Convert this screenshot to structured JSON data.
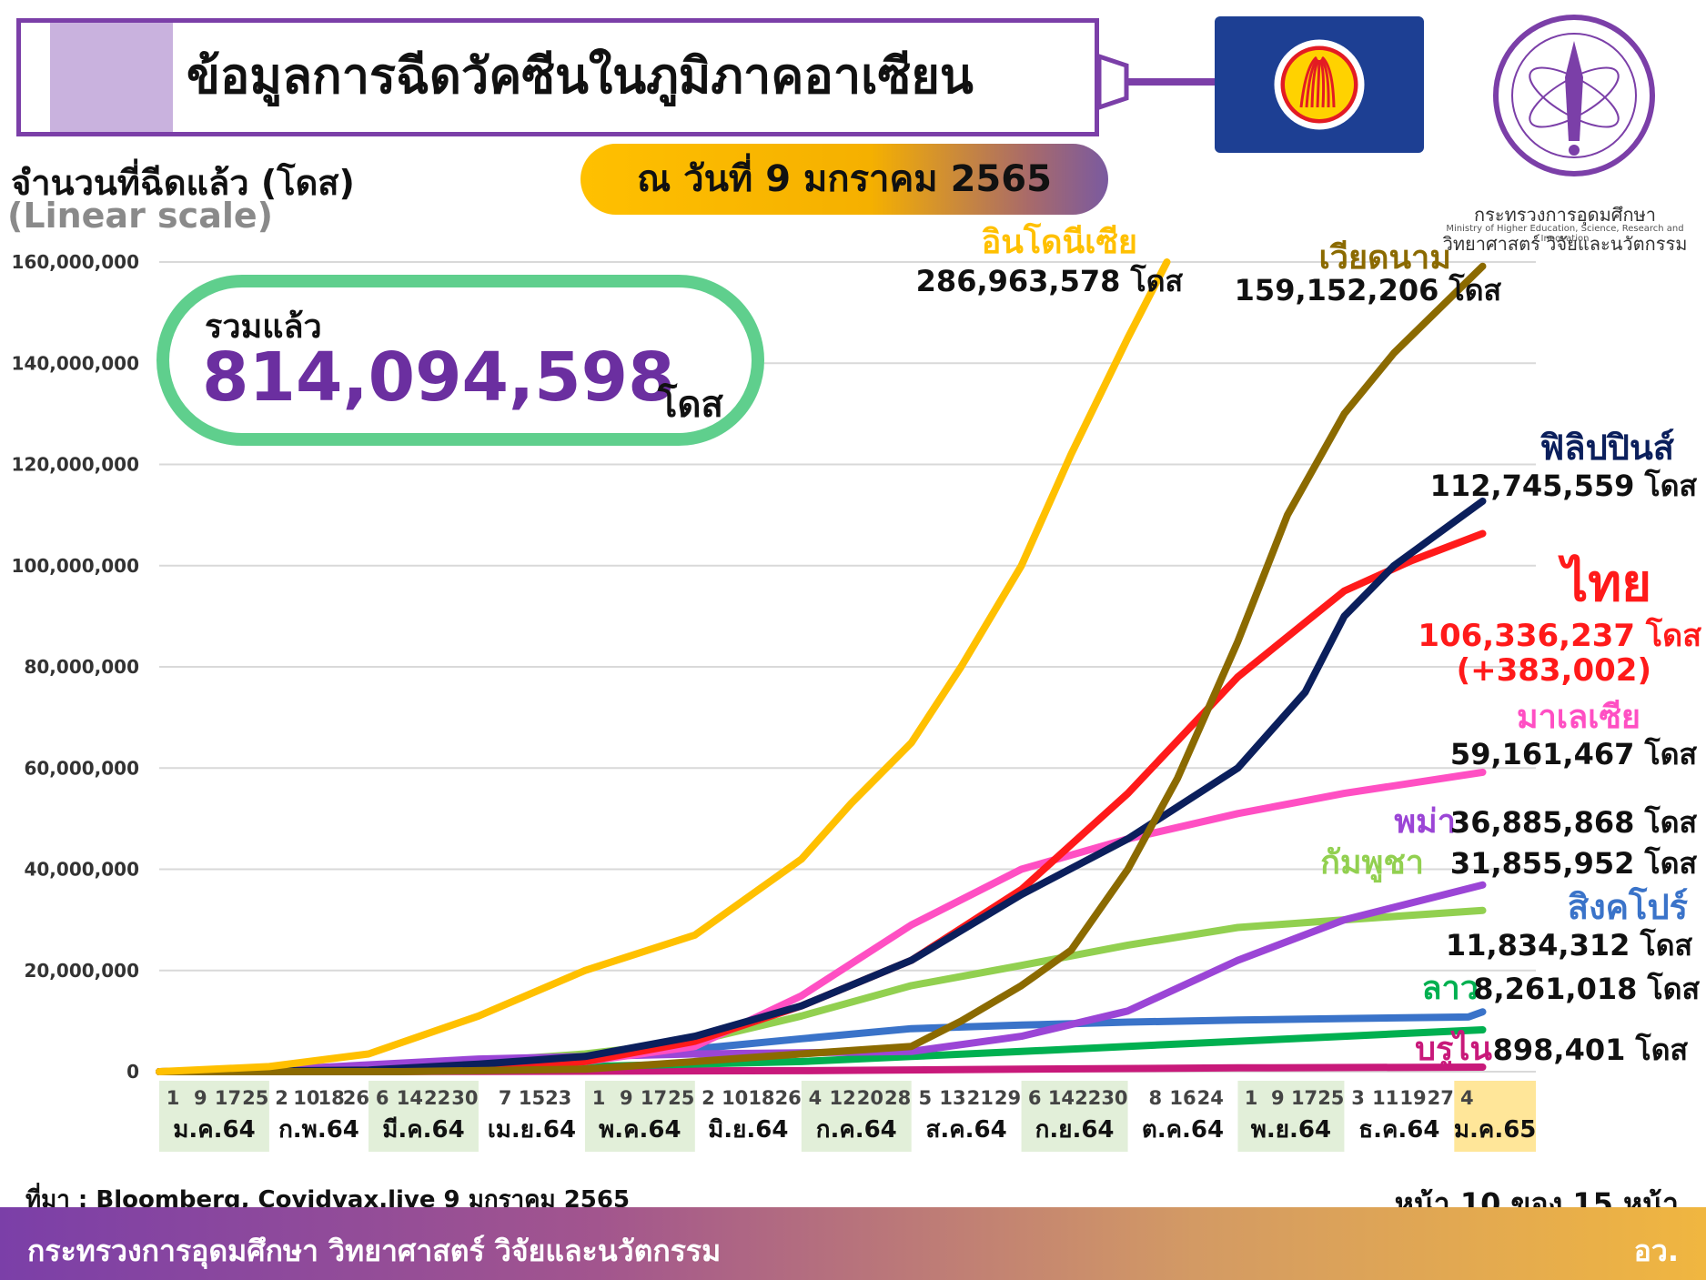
{
  "header": {
    "title": "ข้อมูลการฉีดวัคซีนในภูมิภาคอาเซียน",
    "date": "ณ วันที่ 9 มกราคม 2565",
    "ministry_name": "กระทรวงการอุดมศึกษา วิทยาศาสตร์ วิจัยและนวัตกรรม",
    "ministry_name_en": "Ministry of Higher Education, Science, Research and Innovation"
  },
  "summary": {
    "label": "รวมแล้ว",
    "value": "814,094,598",
    "unit": "โดส"
  },
  "footer": {
    "source": "ที่มา : Bloomberg, Covidvax.live 9 มกราคม 2565",
    "page": "หน้า 10 ของ 15 หน้า",
    "org": "กระทรวงการอุดมศึกษา วิทยาศาสตร์ วิจัยและนวัตกรรม",
    "org_short": "อว."
  },
  "chart_data": {
    "type": "line",
    "ylabel": "จำนวนที่ฉีดแล้ว (โดส)",
    "yscale_note": "(Linear scale)",
    "ylim": [
      0,
      160000000
    ],
    "yticks": [
      0,
      20000000,
      40000000,
      60000000,
      80000000,
      100000000,
      120000000,
      140000000,
      160000000
    ],
    "ytick_labels": [
      "0",
      "20,000,000",
      "40,000,000",
      "60,000,000",
      "80,000,000",
      "100,000,000",
      "120,000,000",
      "140,000,000",
      "160,000,000"
    ],
    "grid": true,
    "x_months": [
      {
        "label": "ม.ค.64",
        "days": [
          "1",
          "9",
          "17",
          "25"
        ],
        "highlight": true
      },
      {
        "label": "ก.พ.64",
        "days": [
          "2",
          "10",
          "18",
          "26"
        ],
        "highlight": false
      },
      {
        "label": "มี.ค.64",
        "days": [
          "6",
          "14",
          "22",
          "30"
        ],
        "highlight": true
      },
      {
        "label": "เม.ย.64",
        "days": [
          "7",
          "15",
          "23"
        ],
        "highlight": false
      },
      {
        "label": "พ.ค.64",
        "days": [
          "1",
          "9",
          "17",
          "25"
        ],
        "highlight": true
      },
      {
        "label": "มิ.ย.64",
        "days": [
          "2",
          "10",
          "18",
          "26"
        ],
        "highlight": false
      },
      {
        "label": "ก.ค.64",
        "days": [
          "4",
          "12",
          "20",
          "28"
        ],
        "highlight": true
      },
      {
        "label": "ส.ค.64",
        "days": [
          "5",
          "13",
          "21",
          "29"
        ],
        "highlight": false
      },
      {
        "label": "ก.ย.64",
        "days": [
          "6",
          "14",
          "22",
          "30"
        ],
        "highlight": true
      },
      {
        "label": "ต.ค.64",
        "days": [
          "8",
          "16",
          "24"
        ],
        "highlight": false
      },
      {
        "label": "พ.ย.64",
        "days": [
          "1",
          "9",
          "17",
          "25"
        ],
        "highlight": true
      },
      {
        "label": "ธ.ค.64",
        "days": [
          "3",
          "11",
          "19",
          "27"
        ],
        "highlight": false
      },
      {
        "label": "ม.ค.65",
        "days": [
          "4"
        ],
        "highlight": "gold"
      }
    ],
    "x_start": "2021-01-01",
    "x_end": "2022-01-09",
    "series": [
      {
        "name": "อินโดนีเซีย",
        "value_label": "286,963,578 โดส",
        "color": "#ffc000",
        "points": [
          [
            "2021-01-01",
            0
          ],
          [
            "2021-02-01",
            1000000
          ],
          [
            "2021-03-01",
            3500000
          ],
          [
            "2021-04-01",
            11000000
          ],
          [
            "2021-05-01",
            20000000
          ],
          [
            "2021-06-01",
            27000000
          ],
          [
            "2021-07-01",
            42000000
          ],
          [
            "2021-07-15",
            53000000
          ],
          [
            "2021-08-01",
            65000000
          ],
          [
            "2021-08-15",
            80000000
          ],
          [
            "2021-09-01",
            100000000
          ],
          [
            "2021-09-15",
            122000000
          ],
          [
            "2021-10-01",
            145000000
          ],
          [
            "2021-10-12",
            160000000
          ]
        ]
      },
      {
        "name": "เวียดนาม",
        "value_label": "159,152,206 โดส",
        "color": "#8b6a00",
        "points": [
          [
            "2021-01-01",
            0
          ],
          [
            "2021-03-10",
            0
          ],
          [
            "2021-05-01",
            500000
          ],
          [
            "2021-06-01",
            2000000
          ],
          [
            "2021-07-01",
            3500000
          ],
          [
            "2021-08-01",
            5000000
          ],
          [
            "2021-08-15",
            10000000
          ],
          [
            "2021-09-01",
            17000000
          ],
          [
            "2021-09-15",
            24000000
          ],
          [
            "2021-10-01",
            40000000
          ],
          [
            "2021-10-15",
            58000000
          ],
          [
            "2021-11-01",
            85000000
          ],
          [
            "2021-11-15",
            110000000
          ],
          [
            "2021-12-01",
            130000000
          ],
          [
            "2021-12-15",
            142000000
          ],
          [
            "2022-01-09",
            159152206
          ]
        ]
      },
      {
        "name": "ฟิลิปปินส์",
        "value_label": "112,745,559 โดส",
        "color": "#0b1f5c",
        "points": [
          [
            "2021-01-01",
            0
          ],
          [
            "2021-03-01",
            300000
          ],
          [
            "2021-04-01",
            1500000
          ],
          [
            "2021-05-01",
            3000000
          ],
          [
            "2021-06-01",
            7000000
          ],
          [
            "2021-07-01",
            13000000
          ],
          [
            "2021-08-01",
            22000000
          ],
          [
            "2021-09-01",
            35000000
          ],
          [
            "2021-10-01",
            46000000
          ],
          [
            "2021-11-01",
            60000000
          ],
          [
            "2021-11-20",
            75000000
          ],
          [
            "2021-12-01",
            90000000
          ],
          [
            "2021-12-15",
            100000000
          ],
          [
            "2022-01-09",
            112745559
          ]
        ]
      },
      {
        "name": "ไทย",
        "value_label": "106,336,237 โดส",
        "extra_label": "(+383,002)",
        "color": "#ff1a1a",
        "points": [
          [
            "2021-01-01",
            0
          ],
          [
            "2021-03-01",
            200000
          ],
          [
            "2021-04-01",
            700000
          ],
          [
            "2021-05-01",
            2000000
          ],
          [
            "2021-06-01",
            6000000
          ],
          [
            "2021-07-01",
            13000000
          ],
          [
            "2021-08-01",
            22000000
          ],
          [
            "2021-09-01",
            36000000
          ],
          [
            "2021-10-01",
            55000000
          ],
          [
            "2021-11-01",
            78000000
          ],
          [
            "2021-12-01",
            95000000
          ],
          [
            "2021-12-20",
            101000000
          ],
          [
            "2022-01-09",
            106336237
          ]
        ]
      },
      {
        "name": "มาเลเซีย",
        "value_label": "59,161,467 โดส",
        "color": "#ff4fc3",
        "points": [
          [
            "2021-01-01",
            0
          ],
          [
            "2021-03-01",
            300000
          ],
          [
            "2021-04-01",
            800000
          ],
          [
            "2021-05-01",
            2000000
          ],
          [
            "2021-06-01",
            5000000
          ],
          [
            "2021-07-01",
            15000000
          ],
          [
            "2021-08-01",
            29000000
          ],
          [
            "2021-09-01",
            40000000
          ],
          [
            "2021-10-01",
            46000000
          ],
          [
            "2021-11-01",
            51000000
          ],
          [
            "2021-12-01",
            55000000
          ],
          [
            "2022-01-09",
            59161467
          ]
        ]
      },
      {
        "name": "พม่า",
        "value_label": "36,885,868 โดส",
        "color": "#9b45d6",
        "points": [
          [
            "2021-01-01",
            0
          ],
          [
            "2021-02-01",
            300000
          ],
          [
            "2021-04-01",
            2500000
          ],
          [
            "2021-06-01",
            3500000
          ],
          [
            "2021-08-01",
            4000000
          ],
          [
            "2021-09-01",
            7000000
          ],
          [
            "2021-10-01",
            12000000
          ],
          [
            "2021-11-01",
            22000000
          ],
          [
            "2021-12-01",
            30000000
          ],
          [
            "2022-01-09",
            36885868
          ]
        ]
      },
      {
        "name": "กัมพูชา",
        "value_label": "31,855,952 โดส",
        "color": "#92d050",
        "points": [
          [
            "2021-01-01",
            0
          ],
          [
            "2021-02-10",
            0
          ],
          [
            "2021-03-01",
            500000
          ],
          [
            "2021-04-01",
            2000000
          ],
          [
            "2021-05-01",
            3500000
          ],
          [
            "2021-06-01",
            6000000
          ],
          [
            "2021-07-01",
            11000000
          ],
          [
            "2021-08-01",
            17000000
          ],
          [
            "2021-09-01",
            21000000
          ],
          [
            "2021-10-01",
            25000000
          ],
          [
            "2021-11-01",
            28500000
          ],
          [
            "2021-12-01",
            30000000
          ],
          [
            "2022-01-09",
            31855952
          ]
        ]
      },
      {
        "name": "สิงคโปร์",
        "value_label": "11,834,312 โดส",
        "color": "#3a73c9",
        "points": [
          [
            "2021-01-01",
            0
          ],
          [
            "2021-03-01",
            500000
          ],
          [
            "2021-04-01",
            1500000
          ],
          [
            "2021-05-01",
            3000000
          ],
          [
            "2021-06-01",
            4500000
          ],
          [
            "2021-07-01",
            6500000
          ],
          [
            "2021-08-01",
            8500000
          ],
          [
            "2021-09-01",
            9200000
          ],
          [
            "2021-10-01",
            9800000
          ],
          [
            "2021-11-01",
            10200000
          ],
          [
            "2021-12-01",
            10500000
          ],
          [
            "2022-01-05",
            10800000
          ],
          [
            "2022-01-09",
            11834312
          ]
        ]
      },
      {
        "name": "ลาว",
        "value_label": "8,261,018 โดส",
        "color": "#00b050",
        "points": [
          [
            "2021-01-01",
            0
          ],
          [
            "2021-03-01",
            300000
          ],
          [
            "2021-05-01",
            1000000
          ],
          [
            "2021-07-01",
            2000000
          ],
          [
            "2021-08-01",
            3000000
          ],
          [
            "2021-09-01",
            4000000
          ],
          [
            "2021-10-01",
            5000000
          ],
          [
            "2021-11-01",
            6000000
          ],
          [
            "2021-12-01",
            7000000
          ],
          [
            "2022-01-09",
            8261018
          ]
        ]
      },
      {
        "name": "บรูไน",
        "value_label": "898,401 โดส",
        "color": "#c8197a",
        "points": [
          [
            "2021-01-01",
            0
          ],
          [
            "2021-04-01",
            50000
          ],
          [
            "2021-07-01",
            200000
          ],
          [
            "2021-09-01",
            500000
          ],
          [
            "2021-11-01",
            750000
          ],
          [
            "2022-01-09",
            898401
          ]
        ]
      }
    ]
  }
}
